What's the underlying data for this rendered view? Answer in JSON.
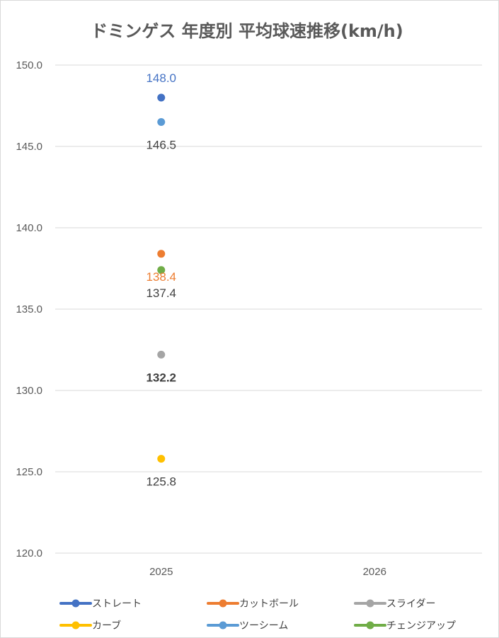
{
  "chart_data": {
    "type": "line",
    "title": "ドミンゲス 年度別 平均球速推移(km/h)",
    "categories": [
      "2025",
      "2026"
    ],
    "ylim": [
      120,
      150
    ],
    "yticks": [
      "150.0",
      "145.0",
      "140.0",
      "135.0",
      "130.0",
      "125.0",
      "120.0"
    ],
    "grid": true,
    "legend_position": "bottom",
    "series": [
      {
        "name": "ストレート",
        "color": "#4472C4",
        "values": [
          148.0,
          null
        ],
        "labels": [
          "148.0",
          ""
        ],
        "label_side": "above",
        "label_color": "#4472C4",
        "label_bold": false
      },
      {
        "name": "カットボール",
        "color": "#ED7D31",
        "values": [
          138.4,
          null
        ],
        "labels": [
          "138.4",
          ""
        ],
        "label_side": "below",
        "label_color": "#ED7D31",
        "label_bold": false
      },
      {
        "name": "スライダー",
        "color": "#A5A5A5",
        "values": [
          132.2,
          null
        ],
        "labels": [
          "132.2",
          ""
        ],
        "label_side": "below",
        "label_color": "#404040",
        "label_bold": true
      },
      {
        "name": "カーブ",
        "color": "#FFC000",
        "values": [
          125.8,
          null
        ],
        "labels": [
          "125.8",
          ""
        ],
        "label_side": "below",
        "label_color": "#404040",
        "label_bold": false
      },
      {
        "name": "ツーシーム",
        "color": "#5B9BD5",
        "values": [
          146.5,
          null
        ],
        "labels": [
          "146.5",
          ""
        ],
        "label_side": "below",
        "label_color": "#404040",
        "label_bold": false
      },
      {
        "name": "チェンジアップ",
        "color": "#70AD47",
        "values": [
          137.4,
          null
        ],
        "labels": [
          "137.4",
          ""
        ],
        "label_side": "below",
        "label_color": "#404040",
        "label_bold": false
      }
    ]
  }
}
